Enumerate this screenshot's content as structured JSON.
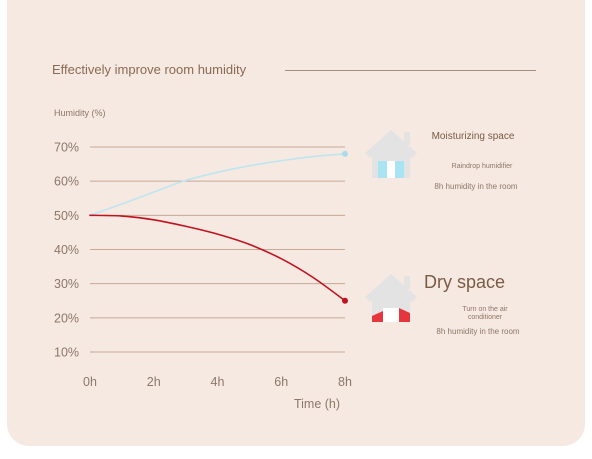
{
  "page": {
    "title": "Effectively improve room humidity"
  },
  "chart_data": {
    "type": "line",
    "ylabel": "Humidity (%)",
    "xlabel": "Time (h)",
    "x": [
      "0h",
      "2h",
      "4h",
      "6h",
      "8h"
    ],
    "x_values": [
      0,
      2,
      4,
      6,
      8
    ],
    "ylim": [
      10,
      70
    ],
    "y_ticks": [
      10,
      20,
      30,
      40,
      50,
      60,
      70
    ],
    "y_tick_labels": [
      "10%",
      "20%",
      "30%",
      "40%",
      "50%",
      "60%",
      "70%"
    ],
    "grid": true,
    "series": [
      {
        "key": "moist",
        "color": "#bfe6ef",
        "end_marker_color": "#a9dcea",
        "points": [
          [
            0,
            50
          ],
          [
            1,
            53.3
          ],
          [
            2,
            56.8
          ],
          [
            3,
            60.2
          ],
          [
            4,
            62.6
          ],
          [
            5,
            64.5
          ],
          [
            6,
            66.0
          ],
          [
            7,
            67.2
          ],
          [
            8,
            68
          ]
        ]
      },
      {
        "key": "dry",
        "color": "#c0131f",
        "end_marker_color": "#c0131f",
        "points": [
          [
            0,
            50
          ],
          [
            1,
            49.8
          ],
          [
            2,
            48.7
          ],
          [
            3,
            46.8
          ],
          [
            4,
            44.5
          ],
          [
            5,
            41.5
          ],
          [
            6,
            37.3
          ],
          [
            7,
            31.8
          ],
          [
            8,
            25
          ]
        ]
      }
    ]
  },
  "legend": {
    "moist": {
      "title": "Moisturizing space",
      "line1": "Raindrop humidifier",
      "line2": "8h humidity in the room",
      "icon": "house-humidifier-icon",
      "accent": "#a8e4f2"
    },
    "dry": {
      "title": "Dry space",
      "line1a": "Turn on the air",
      "line1b": "conditioner",
      "line2": "8h humidity in the room",
      "icon": "house-air-conditioner-icon",
      "accent": "#e5353d"
    }
  }
}
